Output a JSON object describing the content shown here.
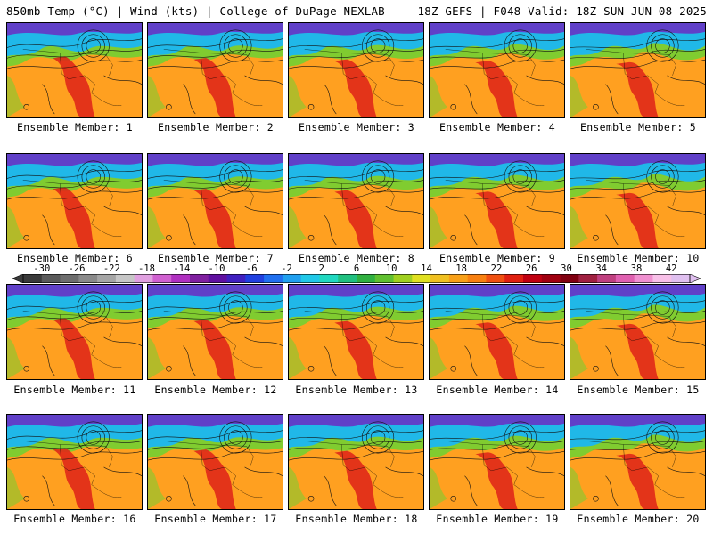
{
  "header": {
    "left": "850mb Temp (°C) | Wind (kts) | College of DuPage NEXLAB",
    "right": "18Z GEFS | F048 Valid: 18Z SUN JUN 08 2025"
  },
  "panels": [
    {
      "label": "Ensemble Member: 1"
    },
    {
      "label": "Ensemble Member: 2"
    },
    {
      "label": "Ensemble Member: 3"
    },
    {
      "label": "Ensemble Member: 4"
    },
    {
      "label": "Ensemble Member: 5"
    },
    {
      "label": "Ensemble Member: 6"
    },
    {
      "label": "Ensemble Member: 7"
    },
    {
      "label": "Ensemble Member: 8"
    },
    {
      "label": "Ensemble Member: 9"
    },
    {
      "label": "Ensemble Member: 10"
    },
    {
      "label": "Ensemble Member: 11"
    },
    {
      "label": "Ensemble Member: 12"
    },
    {
      "label": "Ensemble Member: 13"
    },
    {
      "label": "Ensemble Member: 14"
    },
    {
      "label": "Ensemble Member: 15"
    },
    {
      "label": "Ensemble Member: 16"
    },
    {
      "label": "Ensemble Member: 17"
    },
    {
      "label": "Ensemble Member: 18"
    },
    {
      "label": "Ensemble Member: 19"
    },
    {
      "label": "Ensemble Member: 20"
    }
  ],
  "colorbar": {
    "ticks": [
      "-30",
      "-26",
      "-22",
      "-18",
      "-14",
      "-10",
      "-6",
      "-2",
      "2",
      "6",
      "10",
      "14",
      "18",
      "22",
      "26",
      "30",
      "34",
      "38",
      "42"
    ],
    "colors": [
      "#3a3a3a",
      "#5a5a5a",
      "#6e6e6e",
      "#8a8a8a",
      "#a6a6a6",
      "#c6c6c6",
      "#e0a0e0",
      "#d060d0",
      "#b030c0",
      "#8020a0",
      "#6010a0",
      "#4020c0",
      "#2040e0",
      "#2070f0",
      "#20a0f0",
      "#20c8e8",
      "#20d8c0",
      "#20c080",
      "#30b040",
      "#60c030",
      "#a0d020",
      "#e0e020",
      "#f0c020",
      "#f8a018",
      "#f88010",
      "#f05010",
      "#e02010",
      "#c00010",
      "#a00010",
      "#800010",
      "#a02040",
      "#c04080",
      "#e060b0",
      "#f090d0",
      "#f8c0e8",
      "#e0c0f0"
    ]
  },
  "colors": {
    "cold": "#6040c8",
    "cool": "#20b8e8",
    "mild": "#80cc30",
    "warm": "#ffa020",
    "hot": "#e02818"
  }
}
